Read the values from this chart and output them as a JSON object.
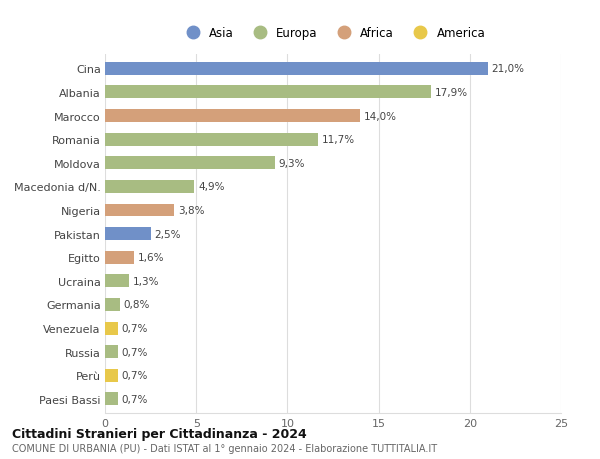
{
  "categories": [
    "Cina",
    "Albania",
    "Marocco",
    "Romania",
    "Moldova",
    "Macedonia d/N.",
    "Nigeria",
    "Pakistan",
    "Egitto",
    "Ucraina",
    "Germania",
    "Venezuela",
    "Russia",
    "Perù",
    "Paesi Bassi"
  ],
  "values": [
    21.0,
    17.9,
    14.0,
    11.7,
    9.3,
    4.9,
    3.8,
    2.5,
    1.6,
    1.3,
    0.8,
    0.7,
    0.7,
    0.7,
    0.7
  ],
  "labels": [
    "21,0%",
    "17,9%",
    "14,0%",
    "11,7%",
    "9,3%",
    "4,9%",
    "3,8%",
    "2,5%",
    "1,6%",
    "1,3%",
    "0,8%",
    "0,7%",
    "0,7%",
    "0,7%",
    "0,7%"
  ],
  "continents": [
    "Asia",
    "Europa",
    "Africa",
    "Europa",
    "Europa",
    "Europa",
    "Africa",
    "Asia",
    "Africa",
    "Europa",
    "Europa",
    "America",
    "Europa",
    "America",
    "Europa"
  ],
  "continent_colors": {
    "Asia": "#7090c8",
    "Europa": "#a8bc82",
    "Africa": "#d4a07a",
    "America": "#e8c84a"
  },
  "legend_order": [
    "Asia",
    "Europa",
    "Africa",
    "America"
  ],
  "xlim": [
    0,
    25
  ],
  "xticks": [
    0,
    5,
    10,
    15,
    20,
    25
  ],
  "title": "Cittadini Stranieri per Cittadinanza - 2024",
  "subtitle": "COMUNE DI URBANIA (PU) - Dati ISTAT al 1° gennaio 2024 - Elaborazione TUTTITALIA.IT",
  "background_color": "#ffffff",
  "grid_color": "#dddddd",
  "bar_height": 0.55
}
